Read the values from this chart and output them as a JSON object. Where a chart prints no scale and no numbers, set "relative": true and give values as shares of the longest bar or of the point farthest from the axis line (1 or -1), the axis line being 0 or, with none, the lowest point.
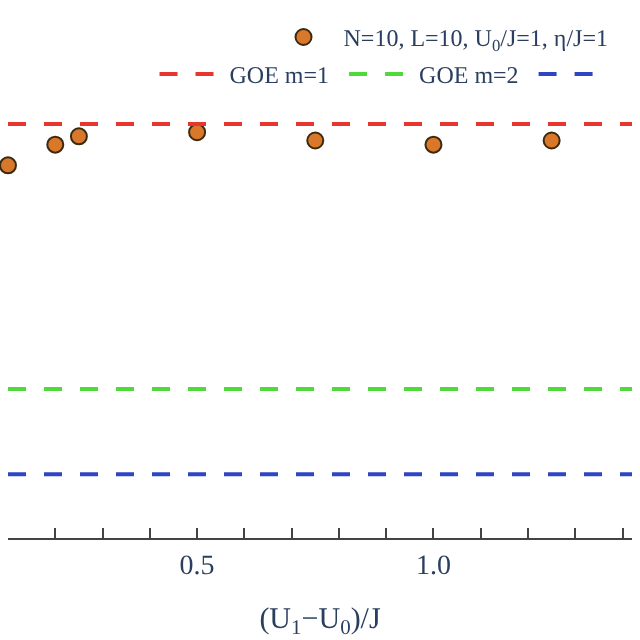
{
  "chart_data": {
    "type": "scatter",
    "relative": true,
    "xlabel": "(U$_{1}$−U$_{0}$)/J",
    "xlim": [
      0.1,
      1.42
    ],
    "xticks": [
      {
        "value": 0.2,
        "label": null
      },
      {
        "value": 0.3,
        "label": null
      },
      {
        "value": 0.4,
        "label": null
      },
      {
        "value": 0.5,
        "label": "0.5"
      },
      {
        "value": 0.6,
        "label": null
      },
      {
        "value": 0.7,
        "label": null
      },
      {
        "value": 0.8,
        "label": null
      },
      {
        "value": 0.9,
        "label": null
      },
      {
        "value": 1.0,
        "label": "1.0"
      },
      {
        "value": 1.1,
        "label": null
      },
      {
        "value": 1.2,
        "label": null
      },
      {
        "value": 1.3,
        "label": null
      },
      {
        "value": 1.4,
        "label": null
      }
    ],
    "tick_labels": "x",
    "legend": "top",
    "series": [
      {
        "name": "N=10, L=10, U$_{0}$/J=1, η/J=1",
        "marker": "circle",
        "color": "#d9772b",
        "x": [
          0.1,
          0.2,
          0.25,
          0.5,
          0.75,
          1.0,
          1.25
        ],
        "values": [
          0.9,
          0.95,
          0.97,
          0.98,
          0.96,
          0.95,
          0.96
        ]
      },
      {
        "name": "GOE m=1",
        "type": "line",
        "marker": "none",
        "line_style": "dashed",
        "color": "#e8362f",
        "x": [
          0.1,
          1.42
        ],
        "values": [
          1,
          1
        ]
      },
      {
        "name": "GOE m=2",
        "type": "line",
        "marker": "none",
        "line_style": "dashed",
        "color": "#4fd93a",
        "x": [
          0.1,
          1.42
        ],
        "values": [
          0.36,
          0.36
        ]
      },
      {
        "type": "line",
        "marker": "none",
        "line_style": "dashed",
        "color": "#2f45c4",
        "x": [
          0.1,
          1.42
        ],
        "values": [
          0.154,
          0.154
        ]
      }
    ]
  }
}
